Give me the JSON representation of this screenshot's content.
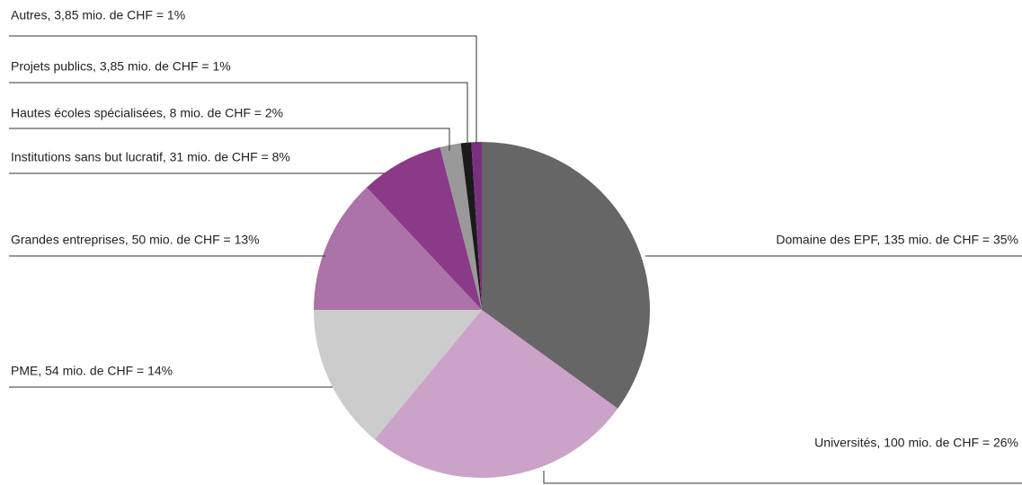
{
  "chart_data": {
    "type": "pie",
    "categories": [
      "Domaine des EPF, 135 mio. de CHF = 35%",
      "Universités, 100 mio. de CHF = 26%",
      "PME, 54 mio. de CHF = 14%",
      "Grandes entreprises, 50 mio. de CHF = 13%",
      "Institutions sans but lucratif, 31 mio. de CHF = 8%",
      "Hautes écoles spécialisées, 8 mio. de CHF = 2%",
      "Projets publics, 3,85 mio. de CHF = 1%",
      "Autres, 3,85 mio. de CHF = 1%"
    ],
    "values": [
      35,
      26,
      14,
      13,
      8,
      2,
      1,
      1
    ],
    "colors": [
      "#666666",
      "#cca3c8",
      "#cccccc",
      "#ab73a8",
      "#8b3a88",
      "#999999",
      "#1a1a1a",
      "#7b2f7f"
    ]
  }
}
